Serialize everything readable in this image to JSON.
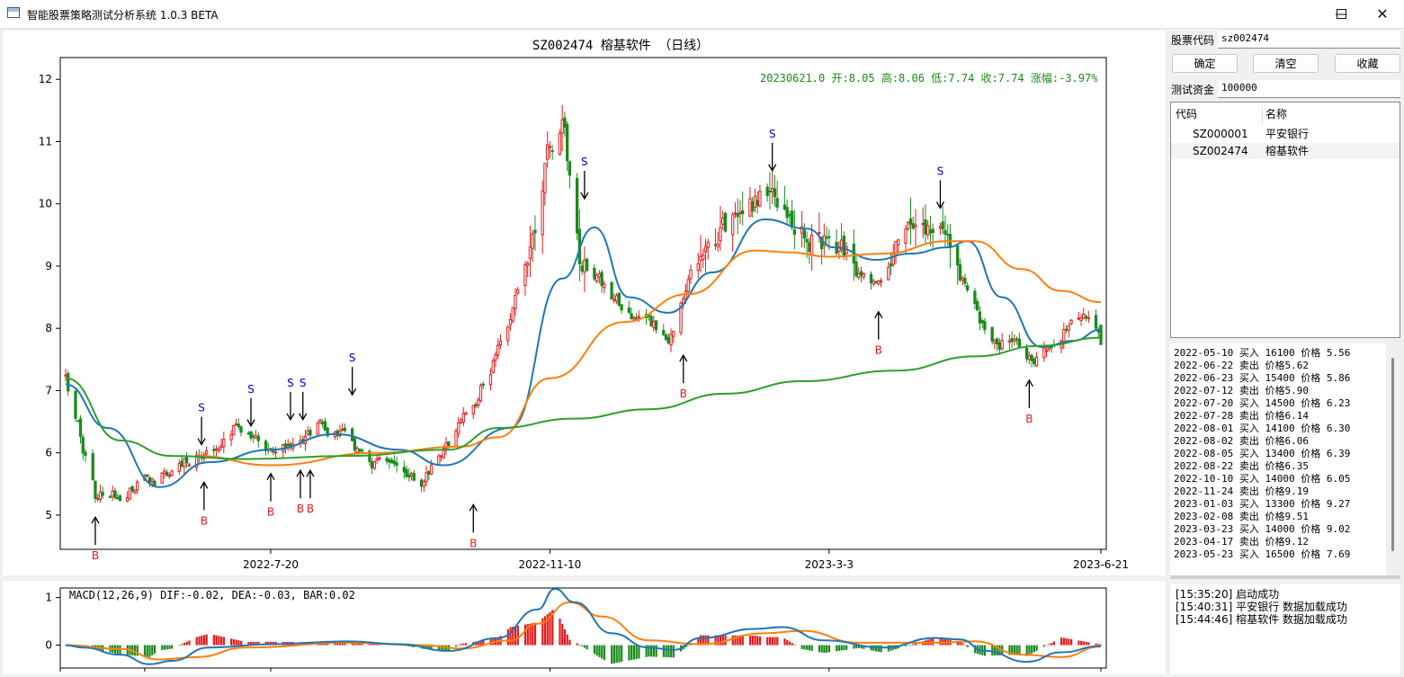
{
  "window": {
    "title": "智能股票策略测试分析系统 1.0.3 BETA",
    "controls": [
      "minimize",
      "maximize",
      "close"
    ]
  },
  "chart_data": [
    {
      "type": "candlestick",
      "title": "SZ002474 榕基软件  （日线）",
      "info": "20230621.0 开:8.05 高:8.06 低:7.74 收:7.74 涨幅:-3.97%",
      "ylim": [
        4.45,
        12.35
      ],
      "yticks": [
        5,
        6,
        7,
        8,
        9,
        10,
        11,
        12
      ],
      "xticks": [
        "2022-7-20",
        "2022-11-10",
        "2023-3-3",
        "2023-6-21"
      ],
      "x_range": [
        "2022-04-28",
        "2023-06-21"
      ],
      "last_bar": {
        "date": "2023-06-21",
        "open": 8.05,
        "high": 8.06,
        "low": 7.74,
        "close": 7.74,
        "change_pct": -3.97
      },
      "anchors": [
        [
          "2022-04-28",
          7.25
        ],
        [
          "2022-05-10",
          5.3
        ],
        [
          "2022-05-30",
          5.5
        ],
        [
          "2022-06-20",
          5.9
        ],
        [
          "2022-07-05",
          6.35
        ],
        [
          "2022-07-20",
          6.0
        ],
        [
          "2022-08-10",
          6.5
        ],
        [
          "2022-08-25",
          6.0
        ],
        [
          "2022-09-20",
          5.5
        ],
        [
          "2022-10-05",
          6.4
        ],
        [
          "2022-10-20",
          7.6
        ],
        [
          "2022-11-01",
          9.0
        ],
        [
          "2022-11-10",
          11.0
        ],
        [
          "2022-11-15",
          11.5
        ],
        [
          "2022-11-22",
          9.2
        ],
        [
          "2022-12-10",
          8.3
        ],
        [
          "2022-12-30",
          7.9
        ],
        [
          "2023-01-05",
          8.8
        ],
        [
          "2023-01-25",
          9.8
        ],
        [
          "2023-02-08",
          10.2
        ],
        [
          "2023-02-15",
          9.6
        ],
        [
          "2023-03-03",
          9.3
        ],
        [
          "2023-03-22",
          8.8
        ],
        [
          "2023-04-08",
          9.6
        ],
        [
          "2023-04-17",
          9.6
        ],
        [
          "2023-04-25",
          8.8
        ],
        [
          "2023-05-05",
          8.0
        ],
        [
          "2023-05-22",
          7.5
        ],
        [
          "2023-06-05",
          7.9
        ],
        [
          "2023-06-14",
          8.15
        ],
        [
          "2023-06-21",
          7.74
        ]
      ],
      "series": [
        {
          "kind": "ma",
          "color": "#1f77b4",
          "points": [
            [
              "2022-04-28",
              7.1
            ],
            [
              "2022-05-15",
              6.4
            ],
            [
              "2022-06-05",
              5.45
            ],
            [
              "2022-06-25",
              5.85
            ],
            [
              "2022-07-20",
              6.05
            ],
            [
              "2022-08-15",
              6.3
            ],
            [
              "2022-09-10",
              6.05
            ],
            [
              "2022-09-28",
              5.8
            ],
            [
              "2022-10-25",
              6.4
            ],
            [
              "2022-11-15",
              8.8
            ],
            [
              "2022-11-28",
              9.62
            ],
            [
              "2022-12-12",
              8.5
            ],
            [
              "2022-12-28",
              8.25
            ],
            [
              "2023-01-15",
              8.9
            ],
            [
              "2023-02-05",
              9.75
            ],
            [
              "2023-02-22",
              9.6
            ],
            [
              "2023-03-05",
              9.3
            ],
            [
              "2023-03-22",
              9.1
            ],
            [
              "2023-04-05",
              9.2
            ],
            [
              "2023-04-20",
              9.3
            ],
            [
              "2023-04-28",
              9.4
            ],
            [
              "2023-05-12",
              8.5
            ],
            [
              "2023-05-28",
              7.7
            ],
            [
              "2023-06-10",
              7.8
            ],
            [
              "2023-06-21",
              7.98
            ]
          ]
        },
        {
          "kind": "ma",
          "color": "#ff7f0e",
          "points": [
            [
              "2022-06-20",
              5.95
            ],
            [
              "2022-07-20",
              5.8
            ],
            [
              "2022-09-01",
              6.0
            ],
            [
              "2022-10-05",
              6.1
            ],
            [
              "2022-10-20",
              6.25
            ],
            [
              "2022-11-10",
              7.2
            ],
            [
              "2022-12-10",
              8.1
            ],
            [
              "2023-01-05",
              8.55
            ],
            [
              "2023-02-01",
              9.25
            ],
            [
              "2023-02-15",
              9.22
            ],
            [
              "2023-03-03",
              9.15
            ],
            [
              "2023-03-25",
              9.2
            ],
            [
              "2023-04-20",
              9.4
            ],
            [
              "2023-05-01",
              9.4
            ],
            [
              "2023-05-20",
              8.95
            ],
            [
              "2023-06-05",
              8.6
            ],
            [
              "2023-06-21",
              8.42
            ]
          ]
        },
        {
          "kind": "ma",
          "color": "#2ca02c",
          "points": [
            [
              "2022-04-28",
              7.2
            ],
            [
              "2022-05-20",
              6.2
            ],
            [
              "2022-06-10",
              5.95
            ],
            [
              "2022-07-10",
              5.9
            ],
            [
              "2022-08-20",
              5.95
            ],
            [
              "2022-09-30",
              6.05
            ],
            [
              "2022-10-20",
              6.4
            ],
            [
              "2022-11-20",
              6.55
            ],
            [
              "2022-12-20",
              6.7
            ],
            [
              "2023-01-20",
              6.95
            ],
            [
              "2023-02-20",
              7.15
            ],
            [
              "2023-03-30",
              7.32
            ],
            [
              "2023-05-01",
              7.55
            ],
            [
              "2023-05-28",
              7.72
            ],
            [
              "2023-06-21",
              7.85
            ]
          ]
        }
      ],
      "signals": [
        {
          "type": "B",
          "date": "2022-05-10",
          "price": 5.3,
          "color": "#e31a1c"
        },
        {
          "type": "B",
          "date": "2022-06-23",
          "price": 5.86,
          "color": "#e31a1c"
        },
        {
          "type": "S",
          "date": "2022-06-22",
          "price": 5.8,
          "color": "#0000cc"
        },
        {
          "type": "S",
          "date": "2022-07-12",
          "price": 6.1,
          "color": "#0000cc"
        },
        {
          "type": "B",
          "date": "2022-07-20",
          "price": 6.0,
          "color": "#e31a1c"
        },
        {
          "type": "S",
          "date": "2022-07-28",
          "price": 6.2,
          "color": "#0000cc"
        },
        {
          "type": "S",
          "date": "2022-08-02",
          "price": 6.2,
          "color": "#0000cc"
        },
        {
          "type": "B",
          "date": "2022-08-01",
          "price": 6.05,
          "color": "#e31a1c"
        },
        {
          "type": "B",
          "date": "2022-08-05",
          "price": 6.05,
          "color": "#e31a1c"
        },
        {
          "type": "S",
          "date": "2022-08-22",
          "price": 6.6,
          "color": "#0000cc"
        },
        {
          "type": "B",
          "date": "2022-10-10",
          "price": 5.5,
          "color": "#e31a1c"
        },
        {
          "type": "S",
          "date": "2022-11-24",
          "price": 9.75,
          "color": "#0000cc"
        },
        {
          "type": "B",
          "date": "2023-01-03",
          "price": 7.9,
          "color": "#e31a1c"
        },
        {
          "type": "S",
          "date": "2023-02-08",
          "price": 10.2,
          "color": "#0000cc"
        },
        {
          "type": "B",
          "date": "2023-03-23",
          "price": 8.6,
          "color": "#e31a1c"
        },
        {
          "type": "S",
          "date": "2023-04-17",
          "price": 9.6,
          "color": "#0000cc"
        },
        {
          "type": "B",
          "date": "2023-05-23",
          "price": 7.5,
          "color": "#e31a1c"
        }
      ]
    },
    {
      "type": "macd",
      "label": "MACD(12,26,9) DIF:-0.02, DEA:-0.03, BAR:0.02",
      "ylim": [
        -0.48,
        1.2
      ],
      "yticks": [
        0,
        1
      ],
      "dif_color": "#1f77b4",
      "dea_color": "#ff7f0e",
      "dif": [
        [
          "2022-04-28",
          0.0
        ],
        [
          "2022-05-05",
          -0.05
        ],
        [
          "2022-05-20",
          -0.2
        ],
        [
          "2022-06-01",
          -0.4
        ],
        [
          "2022-06-10",
          -0.33
        ],
        [
          "2022-06-25",
          -0.05
        ],
        [
          "2022-07-20",
          0.02
        ],
        [
          "2022-08-20",
          0.08
        ],
        [
          "2022-09-10",
          0.02
        ],
        [
          "2022-09-30",
          -0.12
        ],
        [
          "2022-10-20",
          0.15
        ],
        [
          "2022-11-05",
          0.75
        ],
        [
          "2022-11-12",
          1.18
        ],
        [
          "2022-11-20",
          0.9
        ],
        [
          "2022-12-05",
          0.25
        ],
        [
          "2022-12-20",
          -0.05
        ],
        [
          "2022-12-30",
          -0.1
        ],
        [
          "2023-01-10",
          0.15
        ],
        [
          "2023-02-01",
          0.34
        ],
        [
          "2023-02-12",
          0.38
        ],
        [
          "2023-03-01",
          0.1
        ],
        [
          "2023-03-25",
          -0.05
        ],
        [
          "2023-04-15",
          0.15
        ],
        [
          "2023-04-25",
          0.12
        ],
        [
          "2023-05-05",
          -0.12
        ],
        [
          "2023-05-22",
          -0.35
        ],
        [
          "2023-06-05",
          -0.15
        ],
        [
          "2023-06-21",
          -0.02
        ]
      ],
      "dea": [
        [
          "2022-04-28",
          0.0
        ],
        [
          "2022-05-20",
          -0.08
        ],
        [
          "2022-06-05",
          -0.3
        ],
        [
          "2022-06-20",
          -0.25
        ],
        [
          "2022-07-10",
          -0.05
        ],
        [
          "2022-08-20",
          0.05
        ],
        [
          "2022-09-20",
          0.0
        ],
        [
          "2022-10-05",
          -0.07
        ],
        [
          "2022-10-25",
          0.1
        ],
        [
          "2022-11-05",
          0.45
        ],
        [
          "2022-11-18",
          0.9
        ],
        [
          "2022-12-01",
          0.6
        ],
        [
          "2022-12-20",
          0.1
        ],
        [
          "2023-01-10",
          0.02
        ],
        [
          "2023-02-05",
          0.25
        ],
        [
          "2023-02-20",
          0.3
        ],
        [
          "2023-03-15",
          0.05
        ],
        [
          "2023-04-15",
          0.05
        ],
        [
          "2023-05-01",
          0.08
        ],
        [
          "2023-05-20",
          -0.2
        ],
        [
          "2023-06-05",
          -0.25
        ],
        [
          "2023-06-21",
          -0.03
        ]
      ]
    }
  ],
  "sidebar": {
    "stock_code_label": "股票代码",
    "stock_code_value": "sz002474",
    "confirm_button": "确定",
    "clear_button": "清空",
    "favorite_button": "收藏",
    "capital_label": "测试资金",
    "capital_value": "100000",
    "table_headers": [
      "代码",
      "名称"
    ],
    "table_rows": [
      {
        "code": "SZ000001",
        "name": "平安银行"
      },
      {
        "code": "SZ002474",
        "name": "榕基软件"
      }
    ],
    "trade_log": [
      "2022-05-10 买入 16100 价格 5.56",
      "2022-06-22 卖出 价格5.62",
      "2022-06-23 买入 15400 价格 5.86",
      "2022-07-12 卖出 价格5.90",
      "2022-07-20 买入 14500 价格 6.23",
      "2022-07-28 卖出 价格6.14",
      "2022-08-01 买入 14100 价格 6.30",
      "2022-08-02 卖出 价格6.06",
      "2022-08-05 买入 13400 价格 6.39",
      "2022-08-22 卖出 价格6.35",
      "2022-10-10 买入 14000 价格 6.05",
      "2022-11-24 卖出 价格9.19",
      "2023-01-03 买入 13300 价格 9.27",
      "2023-02-08 卖出 价格9.51",
      "2023-03-23 买入 14000 价格 9.02",
      "2023-04-17 卖出 价格9.12",
      "2023-05-23 买入 16500 价格 7.69"
    ],
    "status_log": [
      "[15:35:20] 启动成功",
      "[15:40:31] 平安银行 数据加载成功",
      "[15:44:46] 榕基软件 数据加载成功"
    ]
  }
}
